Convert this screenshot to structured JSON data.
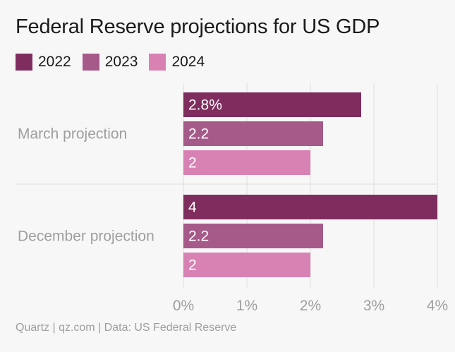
{
  "chart_data": {
    "type": "bar",
    "orientation": "horizontal",
    "title": "Federal Reserve projections for US GDP",
    "categories": [
      "March projection",
      "December projection"
    ],
    "series": [
      {
        "name": "2022",
        "color": "#7f2d5e",
        "values": [
          2.8,
          4
        ]
      },
      {
        "name": "2023",
        "color": "#a65a8a",
        "values": [
          2.2,
          2.2
        ]
      },
      {
        "name": "2024",
        "color": "#d882b4",
        "values": [
          2,
          2
        ]
      }
    ],
    "value_labels": [
      [
        "2.8%",
        "4"
      ],
      [
        "2.2",
        "2.2"
      ],
      [
        "2",
        "2"
      ]
    ],
    "xlim": [
      0,
      4
    ],
    "xticks": [
      0,
      1,
      2,
      3,
      4
    ],
    "xtick_labels": [
      "0%",
      "1%",
      "2%",
      "3%",
      "4%"
    ],
    "xlabel": "",
    "ylabel": "",
    "grid": true,
    "legend_position": "top-left",
    "source": "Quartz | qz.com | Data: US Federal Reserve"
  }
}
